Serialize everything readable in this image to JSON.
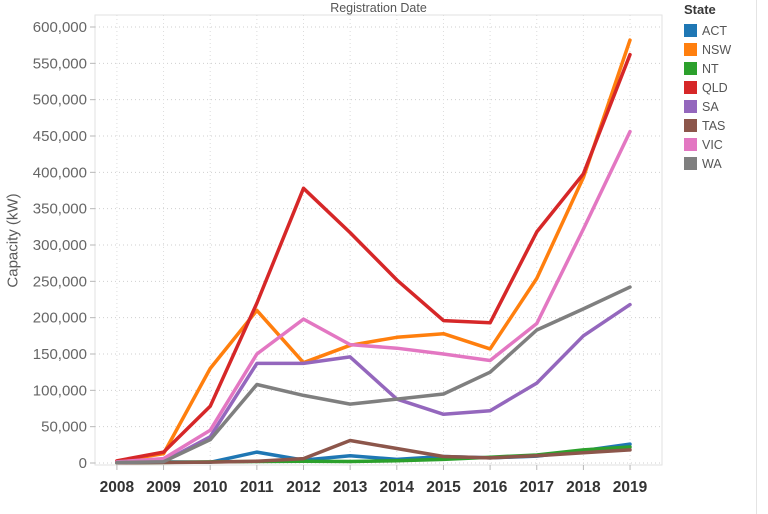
{
  "title": "Registration Date",
  "legend": {
    "title": "State",
    "items": [
      {
        "label": "ACT",
        "color": "#1f77b4"
      },
      {
        "label": "NSW",
        "color": "#ff7f0e"
      },
      {
        "label": "NT",
        "color": "#2ca02c"
      },
      {
        "label": "QLD",
        "color": "#d62728"
      },
      {
        "label": "SA",
        "color": "#9467bd"
      },
      {
        "label": "TAS",
        "color": "#8c564b"
      },
      {
        "label": "VIC",
        "color": "#e377c2"
      },
      {
        "label": "WA",
        "color": "#7f7f7f"
      }
    ]
  },
  "chart_data": {
    "type": "line",
    "title": "Registration Date",
    "xlabel": "",
    "ylabel": "Capacity (kW)",
    "x": [
      2008,
      2009,
      2010,
      2011,
      2012,
      2013,
      2014,
      2015,
      2016,
      2017,
      2018,
      2019
    ],
    "x_tick_labels": [
      "2008",
      "2009",
      "2010",
      "2011",
      "2012",
      "2013",
      "2014",
      "2015",
      "2016",
      "2017",
      "2018",
      "2019"
    ],
    "ylim": [
      0,
      600000
    ],
    "ytick_step": 50000,
    "y_tick_labels": [
      "0",
      "50,000",
      "100,000",
      "150,000",
      "200,000",
      "250,000",
      "300,000",
      "350,000",
      "400,000",
      "450,000",
      "500,000",
      "550,000",
      "600,000"
    ],
    "grid": "dotted",
    "legend_position": "top-right",
    "legend_title": "State",
    "series": [
      {
        "name": "ACT",
        "color": "#1f77b4",
        "values": [
          500,
          1500,
          1000,
          15000,
          4000,
          10000,
          5000,
          9000,
          7000,
          9500,
          17000,
          26000
        ]
      },
      {
        "name": "NSW",
        "color": "#ff7f0e",
        "values": [
          2500,
          13000,
          130000,
          210000,
          138000,
          162000,
          173000,
          178000,
          157000,
          254000,
          393000,
          582000
        ]
      },
      {
        "name": "NT",
        "color": "#2ca02c",
        "values": [
          300,
          800,
          1500,
          2000,
          2500,
          2000,
          3000,
          5000,
          8000,
          11000,
          18000,
          22000
        ]
      },
      {
        "name": "QLD",
        "color": "#d62728",
        "values": [
          3000,
          15000,
          78000,
          220000,
          378000,
          317000,
          252000,
          196000,
          193000,
          318000,
          398000,
          562000
        ]
      },
      {
        "name": "SA",
        "color": "#9467bd",
        "values": [
          800,
          2000,
          36000,
          137000,
          137000,
          146000,
          88000,
          67000,
          72000,
          110000,
          175000,
          218000
        ]
      },
      {
        "name": "TAS",
        "color": "#8c564b",
        "values": [
          300,
          700,
          1200,
          2500,
          6000,
          31000,
          20000,
          9000,
          7000,
          10000,
          14000,
          18000
        ]
      },
      {
        "name": "VIC",
        "color": "#e377c2",
        "values": [
          1500,
          6000,
          45000,
          150000,
          198000,
          163000,
          158000,
          150000,
          141000,
          192000,
          322000,
          456000
        ]
      },
      {
        "name": "WA",
        "color": "#7f7f7f",
        "values": [
          700,
          1800,
          32000,
          108000,
          93000,
          81000,
          88000,
          95000,
          125000,
          183000,
          212000,
          242000
        ]
      }
    ]
  }
}
